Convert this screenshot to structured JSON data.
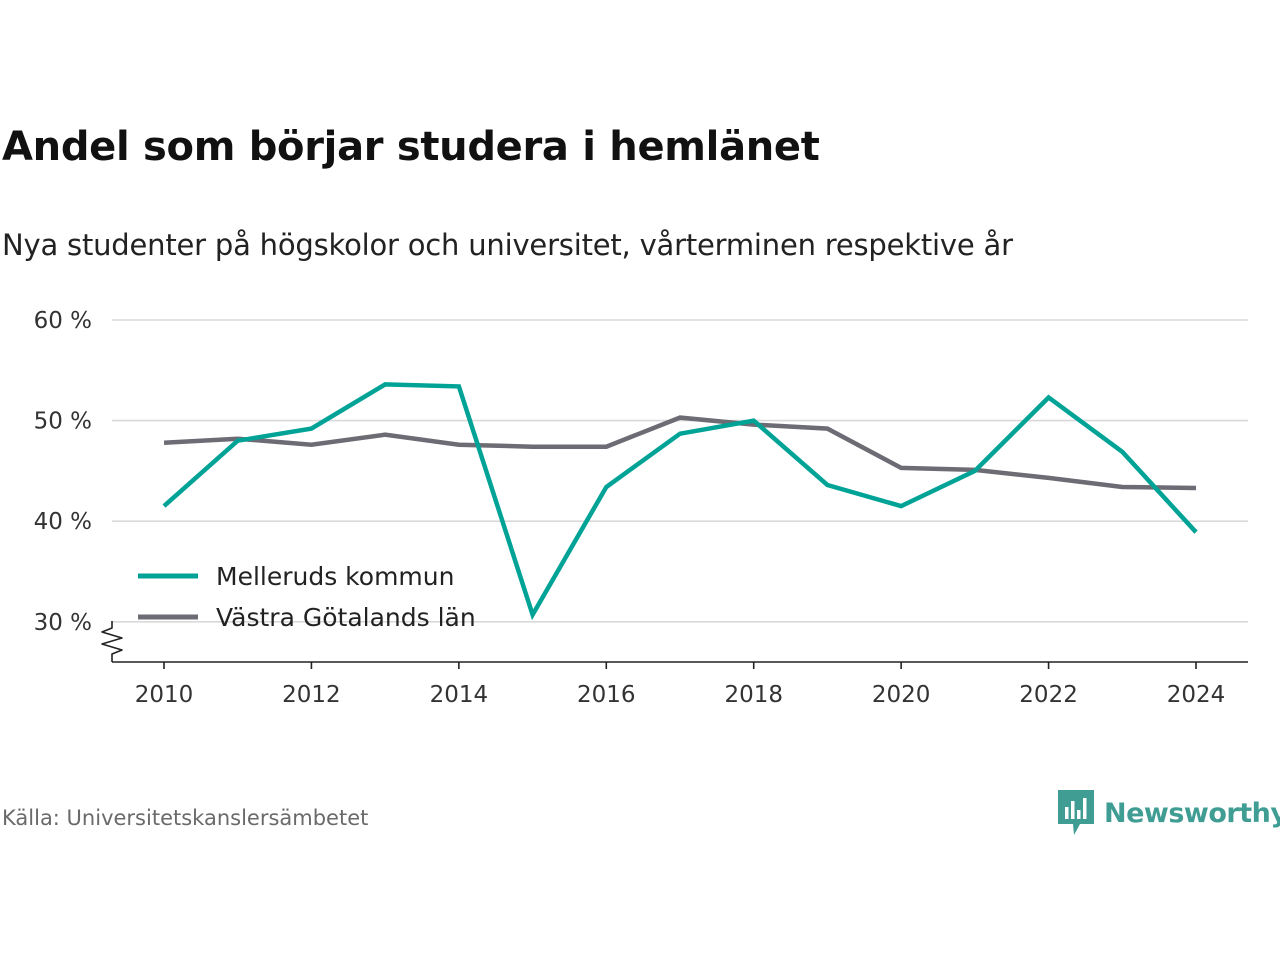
{
  "chart_data": {
    "type": "line",
    "title": "Andel som börjar studera i hemlänet",
    "subtitle": "Nya studenter på högskolor och universitet, vårterminen respektive år",
    "x": [
      2010,
      2011,
      2012,
      2013,
      2014,
      2015,
      2016,
      2017,
      2018,
      2019,
      2020,
      2021,
      2022,
      2023,
      2024
    ],
    "x_ticks": [
      "2010",
      "2012",
      "2014",
      "2016",
      "2018",
      "2020",
      "2022",
      "2024"
    ],
    "y_ticks": [
      "30 %",
      "40 %",
      "50 %",
      "60 %"
    ],
    "ylim": [
      26,
      60
    ],
    "y_axis_break": true,
    "grid": "horizontal",
    "legend_position": "bottom-left",
    "series": [
      {
        "name": "Melleruds kommun",
        "color": "#00a396",
        "values": [
          41.5,
          48.0,
          49.2,
          53.6,
          53.4,
          30.7,
          43.4,
          48.7,
          50.0,
          43.6,
          41.5,
          45.0,
          52.3,
          46.9,
          38.9
        ]
      },
      {
        "name": "Västra Götalands län",
        "color": "#6d6b73",
        "values": [
          47.8,
          48.2,
          47.6,
          48.6,
          47.6,
          47.4,
          47.4,
          50.3,
          49.6,
          49.2,
          45.3,
          45.1,
          44.3,
          43.4,
          43.3
        ]
      }
    ]
  },
  "source": "Källa: Universitetskanslersämbetet",
  "brand": {
    "name": "Newsworthy",
    "color": "#3f9d94"
  }
}
